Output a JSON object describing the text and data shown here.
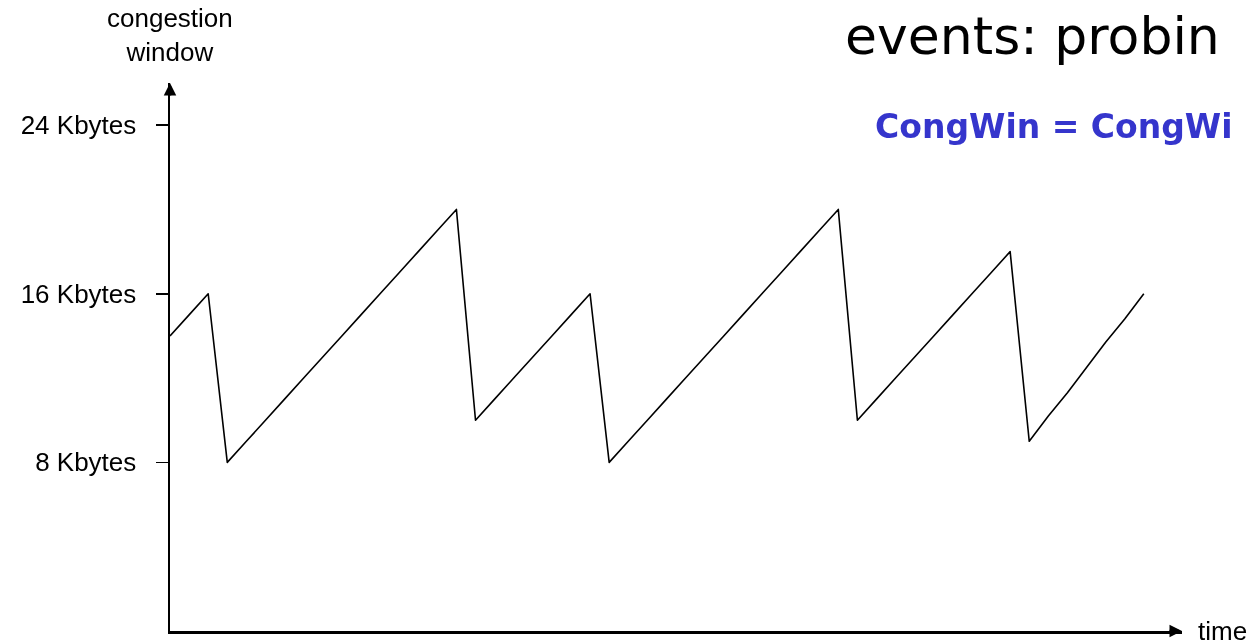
{
  "chart_data": {
    "type": "line",
    "title": "events: probin",
    "annotations": [
      "CongWin = CongWi"
    ],
    "ylabel": "congestion\nwindow",
    "xlabel": "time",
    "categories": [
      null,
      null,
      null,
      null,
      null,
      null,
      null,
      null,
      null,
      null,
      null,
      null,
      null,
      null,
      null,
      null,
      null,
      null,
      null,
      null,
      null,
      null,
      null,
      null,
      null,
      null,
      null,
      null,
      null,
      null,
      null,
      null,
      null,
      null,
      null,
      null,
      null,
      null,
      null,
      null,
      null,
      null,
      null,
      null,
      null,
      null,
      null,
      null,
      null,
      null,
      null,
      null
    ],
    "values": [
      14,
      15,
      16,
      8,
      9,
      10,
      11,
      12,
      13,
      14,
      15,
      16,
      17,
      18,
      19,
      20,
      10,
      11,
      12,
      13,
      14,
      15,
      16,
      8,
      9,
      10,
      11,
      12,
      13,
      14,
      15,
      16,
      17,
      18,
      19,
      20,
      10,
      11,
      12,
      13,
      14,
      15,
      16,
      17,
      18,
      9,
      10.2,
      11.3,
      12.5,
      13.7,
      14.8,
      16
    ],
    "color": "#000000",
    "ylim": [
      0,
      26
    ],
    "yticks": [
      {
        "value": 8,
        "label": "8 Kbytes"
      },
      {
        "value": 16,
        "label": "16 Kbytes"
      },
      {
        "value": 24,
        "label": "24 Kbytes"
      }
    ],
    "tick_labels": "y"
  }
}
